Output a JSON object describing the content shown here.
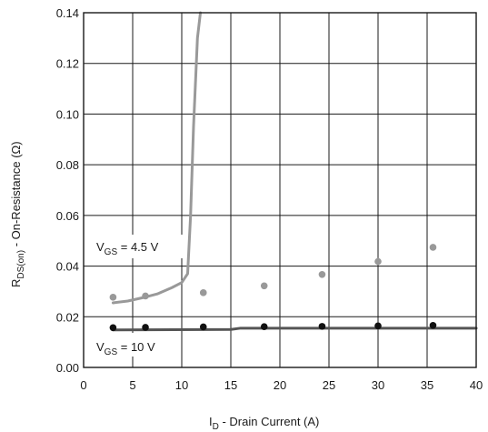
{
  "chart_data": {
    "type": "line",
    "xlabel": {
      "main": "I",
      "sub": "D",
      "rest": " - Drain Current (A)"
    },
    "ylabel": {
      "main": "R",
      "sub": "DS(on)",
      "rest": " - On-Resistance (Ω)"
    },
    "xlim": [
      0,
      40
    ],
    "ylim": [
      0,
      0.14
    ],
    "xticks": [
      "0",
      "5",
      "10",
      "15",
      "20",
      "25",
      "30",
      "35",
      "40"
    ],
    "yticks": [
      "0.00",
      "0.02",
      "0.04",
      "0.06",
      "0.08",
      "0.10",
      "0.12",
      "0.14"
    ],
    "grid": true,
    "colors": {
      "vgs45": "#999999",
      "vgs10": "#555555",
      "dots10": "#111111",
      "grid": "#1a1a1a"
    },
    "series": [
      {
        "name": "V_GS = 4.5 V",
        "label": {
          "main": "V",
          "sub": "GS",
          "rest": " = 4.5 V"
        },
        "kind": "line",
        "x": [
          3.0,
          4.5,
          6.0,
          7.5,
          9.0,
          10.0,
          10.6,
          10.9,
          11.2,
          11.6,
          11.9
        ],
        "y": [
          0.0255,
          0.0262,
          0.0275,
          0.029,
          0.0315,
          0.0335,
          0.037,
          0.06,
          0.095,
          0.13,
          0.14
        ]
      },
      {
        "name": "V_GS = 4.5 V measured",
        "kind": "points",
        "x": [
          3.0,
          6.3,
          12.2,
          18.4,
          24.3,
          30.0,
          35.6
        ],
        "y": [
          0.0277,
          0.0282,
          0.0295,
          0.0322,
          0.0367,
          0.0418,
          0.0474
        ]
      },
      {
        "name": "V_GS = 10 V",
        "label": {
          "main": "V",
          "sub": "GS",
          "rest": " = 10 V"
        },
        "kind": "line",
        "x": [
          3.0,
          15.0,
          16.0,
          40.0
        ],
        "y": [
          0.0148,
          0.015,
          0.0155,
          0.0155
        ]
      },
      {
        "name": "V_GS = 10 V measured",
        "kind": "points",
        "x": [
          3.0,
          6.3,
          12.2,
          18.4,
          24.3,
          30.0,
          35.6
        ],
        "y": [
          0.0157,
          0.0158,
          0.016,
          0.0161,
          0.0162,
          0.0164,
          0.0166
        ]
      }
    ]
  }
}
